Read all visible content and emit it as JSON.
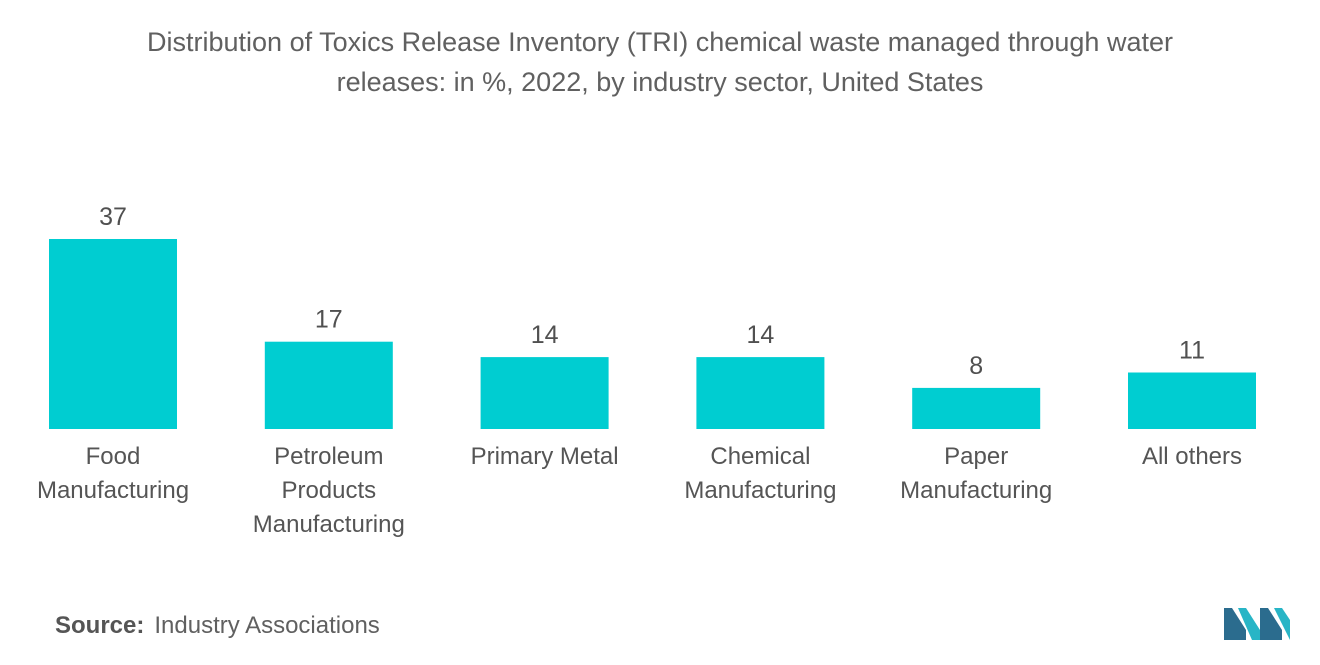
{
  "title_line1": "Distribution of Toxics Release Inventory (TRI) chemical waste managed through water",
  "title_line2": "releases: in %, 2022, by industry sector, United States",
  "source_label": "Source:",
  "source_text": "Industry Associations",
  "colors": {
    "bar": "#00CDD1",
    "logo_dark": "#2B6C8E",
    "logo_light": "#28B5C6"
  },
  "chart_data": {
    "type": "bar",
    "title": "Distribution of Toxics Release Inventory (TRI) chemical waste managed through water releases: in %, 2022, by industry sector, United States",
    "categories": [
      [
        "Food",
        "Manufacturing"
      ],
      [
        "Petroleum",
        "Products",
        "Manufacturing"
      ],
      [
        "Primary Metal"
      ],
      [
        "Chemical",
        "Manufacturing"
      ],
      [
        "Paper",
        "Manufacturing"
      ],
      [
        "All others"
      ]
    ],
    "values": [
      37,
      17,
      14,
      14,
      8,
      11
    ],
    "xlabel": "",
    "ylabel": "",
    "ylim": [
      0,
      37
    ],
    "grid": false,
    "legend": "none"
  }
}
